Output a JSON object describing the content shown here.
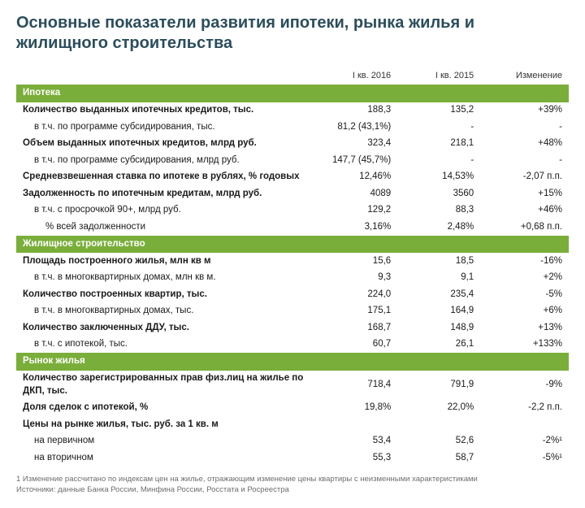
{
  "title": "Основные показатели развития ипотеки, рынка жилья и жилищного строительства",
  "columns": {
    "c1": "I кв. 2016",
    "c2": "I кв. 2015",
    "c3": "Изменение"
  },
  "sections": {
    "mortgage": {
      "header": "Ипотека",
      "r1": {
        "label": "Количество выданных ипотечных кредитов, тыс.",
        "v1": "188,3",
        "v2": "135,2",
        "chg": "+39%"
      },
      "r2": {
        "label": "в т.ч. по программе субсидирования, тыс.",
        "v1": "81,2 (43,1%)",
        "v2": "-",
        "chg": "-"
      },
      "r3": {
        "label": "Объем выданных ипотечных кредитов, млрд руб.",
        "v1": "323,4",
        "v2": "218,1",
        "chg": "+48%"
      },
      "r4": {
        "label": "в т.ч. по программе субсидирования, млрд руб.",
        "v1": "147,7 (45,7%)",
        "v2": "-",
        "chg": "-"
      },
      "r5": {
        "label": "Средневзвешенная ставка по ипотеке в рублях, % годовых",
        "v1": "12,46%",
        "v2": "14,53%",
        "chg": "-2,07 п.п."
      },
      "r6": {
        "label": "Задолженность по ипотечным кредитам, млрд руб.",
        "v1": "4089",
        "v2": "3560",
        "chg": "+15%"
      },
      "r7": {
        "label": "в т.ч. с просрочкой 90+, млрд руб.",
        "v1": "129,2",
        "v2": "88,3",
        "chg": "+46%"
      },
      "r8": {
        "label": "% всей задолженности",
        "v1": "3,16%",
        "v2": "2,48%",
        "chg": "+0,68 п.п."
      }
    },
    "construction": {
      "header": "Жилищное строительство",
      "r1": {
        "label": "Площадь построенного жилья, млн кв м",
        "v1": "15,6",
        "v2": "18,5",
        "chg": "-16%"
      },
      "r2": {
        "label": "в т.ч. в многоквартирных домах, млн кв м.",
        "v1": "9,3",
        "v2": "9,1",
        "chg": "+2%"
      },
      "r3": {
        "label": "Количество построенных квартир, тыс.",
        "v1": "224,0",
        "v2": "235,4",
        "chg": "-5%"
      },
      "r4": {
        "label": "в т.ч. в многоквартирных домах, тыс.",
        "v1": "175,1",
        "v2": "164,9",
        "chg": "+6%"
      },
      "r5": {
        "label": "Количество заключенных ДДУ, тыс.",
        "v1": "168,7",
        "v2": "148,9",
        "chg": "+13%"
      },
      "r6": {
        "label": "в т.ч. с ипотекой, тыс.",
        "v1": "60,7",
        "v2": "26,1",
        "chg": "+133%"
      }
    },
    "market": {
      "header": "Рынок жилья",
      "r1": {
        "label": "Количество зарегистрированных прав физ.лиц на жилье по ДКП, тыс.",
        "v1": "718,4",
        "v2": "791,9",
        "chg": "-9%"
      },
      "r2": {
        "label": "Доля сделок с ипотекой, %",
        "v1": "19,8%",
        "v2": "22,0%",
        "chg": "-2,2 п.п."
      },
      "r3": {
        "label": "Цены на рынке жилья, тыс. руб. за 1 кв. м",
        "v1": "",
        "v2": "",
        "chg": ""
      },
      "r4": {
        "label": "на первичном",
        "v1": "53,4",
        "v2": "52,6",
        "chg": "-2%¹"
      },
      "r5": {
        "label": "на вторичном",
        "v1": "55,3",
        "v2": "58,7",
        "chg": "-5%¹"
      }
    }
  },
  "footnote": {
    "line1": "1 Изменение рассчитано по индексам цен на жилье, отражающим изменение цены квартиры с неизменными характеристиками",
    "line2": "Источники: данные Банка России, Минфина России, Росстата и Росреестра"
  },
  "style": {
    "band_color": "#7aae3a",
    "title_color": "#2b4d5c",
    "text_color": "#1a1a1a",
    "bg": "#ffffff"
  }
}
